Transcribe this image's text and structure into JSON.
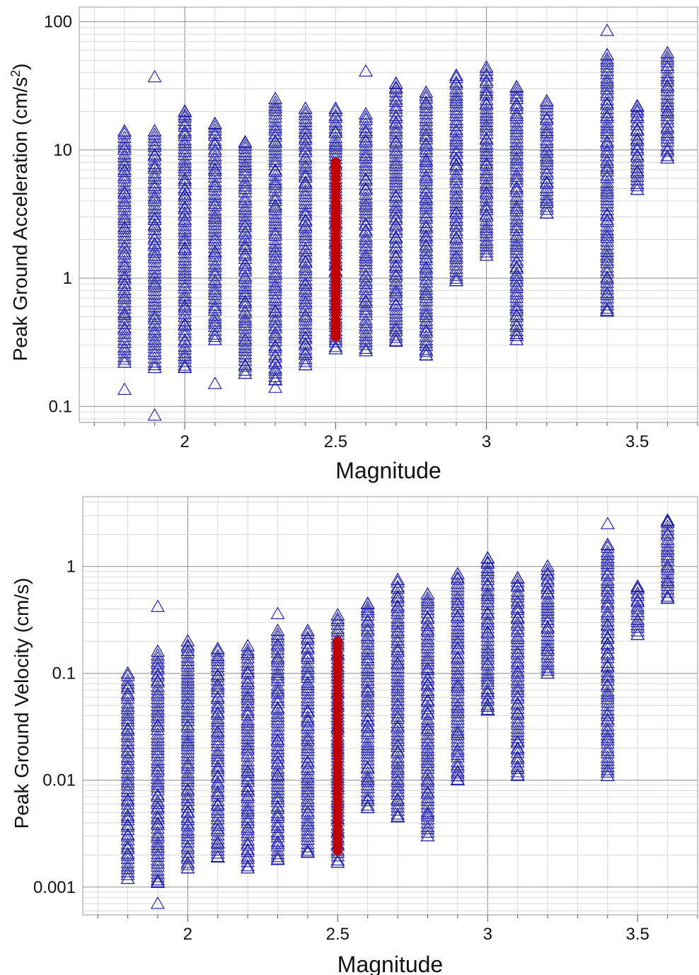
{
  "colors": {
    "triangle": "#1a1aa8",
    "highlight": "#c00000",
    "grid_major": "#8c8c8c",
    "grid_minor": "#d9d9d9"
  },
  "icons": {
    "marker_open": "triangle-outline",
    "marker_highlight": "filled-circle"
  },
  "chart_data": [
    {
      "type": "scatter",
      "xlabel": "Magnitude",
      "ylabel": "Peak Ground Acceleration (cm/s",
      "ylabel_sup": "2",
      "ylabel_tail": ")",
      "xticks": [
        "2",
        "2.5",
        "3",
        "3.5"
      ],
      "yticks": [
        "0.1",
        "1",
        "10",
        "100"
      ],
      "xlim": [
        1.65,
        3.7
      ],
      "ylim": [
        0.075,
        130
      ],
      "yscale": "log",
      "grid": true,
      "series": [
        {
          "marker": "open-triangle",
          "points": [
            {
              "x": 1.8,
              "y_min": 0.22,
              "y_max": 14,
              "outliers": [
                0.135
              ]
            },
            {
              "x": 1.9,
              "y_min": 0.2,
              "y_max": 14,
              "outliers": [
                0.085,
                37
              ]
            },
            {
              "x": 2.0,
              "y_min": 0.2,
              "y_max": 20,
              "outliers": []
            },
            {
              "x": 2.1,
              "y_min": 0.33,
              "y_max": 16,
              "outliers": [
                0.15
              ]
            },
            {
              "x": 2.2,
              "y_min": 0.18,
              "y_max": 11.5,
              "outliers": []
            },
            {
              "x": 2.3,
              "y_min": 0.16,
              "y_max": 25,
              "outliers": [
                0.14
              ]
            },
            {
              "x": 2.4,
              "y_min": 0.21,
              "y_max": 21,
              "outliers": []
            },
            {
              "x": 2.5,
              "y_min": 0.28,
              "y_max": 21,
              "outliers": []
            },
            {
              "x": 2.6,
              "y_min": 0.27,
              "y_max": 19,
              "outliers": [
                41
              ]
            },
            {
              "x": 2.7,
              "y_min": 0.32,
              "y_max": 33,
              "outliers": []
            },
            {
              "x": 2.8,
              "y_min": 0.25,
              "y_max": 28,
              "outliers": []
            },
            {
              "x": 2.9,
              "y_min": 0.95,
              "y_max": 38,
              "outliers": []
            },
            {
              "x": 3.0,
              "y_min": 1.5,
              "y_max": 44,
              "outliers": []
            },
            {
              "x": 3.1,
              "y_min": 0.33,
              "y_max": 31,
              "outliers": []
            },
            {
              "x": 3.2,
              "y_min": 3.2,
              "y_max": 24,
              "outliers": []
            },
            {
              "x": 3.4,
              "y_min": 0.55,
              "y_max": 55,
              "outliers": [
                85
              ]
            },
            {
              "x": 3.5,
              "y_min": 4.9,
              "y_max": 22,
              "outliers": []
            },
            {
              "x": 3.6,
              "y_min": 8.6,
              "y_max": 57,
              "outliers": []
            }
          ]
        },
        {
          "marker": "filled-circle",
          "points": [
            {
              "x": 2.5,
              "y_min": 0.35,
              "y_max": 8,
              "outliers": []
            }
          ]
        }
      ]
    },
    {
      "type": "scatter",
      "xlabel": "Magnitude",
      "ylabel": "Peak Ground Velocity (cm/s)",
      "xticks": [
        "2",
        "2.5",
        "3",
        "3.5"
      ],
      "yticks": [
        "0.001",
        "0.01",
        "0.1",
        "1"
      ],
      "xlim": [
        1.65,
        3.7
      ],
      "ylim": [
        0.00055,
        4.5
      ],
      "yscale": "log",
      "grid": true,
      "series": [
        {
          "marker": "open-triangle",
          "points": [
            {
              "x": 1.8,
              "y_min": 0.0012,
              "y_max": 0.1,
              "outliers": []
            },
            {
              "x": 1.9,
              "y_min": 0.0011,
              "y_max": 0.16,
              "outliers": [
                0.0007,
                0.42
              ]
            },
            {
              "x": 2.0,
              "y_min": 0.0015,
              "y_max": 0.2,
              "outliers": []
            },
            {
              "x": 2.1,
              "y_min": 0.0019,
              "y_max": 0.17,
              "outliers": []
            },
            {
              "x": 2.2,
              "y_min": 0.0015,
              "y_max": 0.18,
              "outliers": []
            },
            {
              "x": 2.3,
              "y_min": 0.0018,
              "y_max": 0.25,
              "outliers": [
                0.36
              ]
            },
            {
              "x": 2.4,
              "y_min": 0.0021,
              "y_max": 0.25,
              "outliers": []
            },
            {
              "x": 2.5,
              "y_min": 0.0017,
              "y_max": 0.35,
              "outliers": []
            },
            {
              "x": 2.6,
              "y_min": 0.0055,
              "y_max": 0.45,
              "outliers": []
            },
            {
              "x": 2.7,
              "y_min": 0.0045,
              "y_max": 0.75,
              "outliers": []
            },
            {
              "x": 2.8,
              "y_min": 0.003,
              "y_max": 0.55,
              "outliers": []
            },
            {
              "x": 2.9,
              "y_min": 0.01,
              "y_max": 0.85,
              "outliers": []
            },
            {
              "x": 3.0,
              "y_min": 0.045,
              "y_max": 1.2,
              "outliers": []
            },
            {
              "x": 3.1,
              "y_min": 0.011,
              "y_max": 0.78,
              "outliers": []
            },
            {
              "x": 3.2,
              "y_min": 0.1,
              "y_max": 1.0,
              "outliers": []
            },
            {
              "x": 3.4,
              "y_min": 0.011,
              "y_max": 1.6,
              "outliers": [
                2.5
              ]
            },
            {
              "x": 3.5,
              "y_min": 0.23,
              "y_max": 0.65,
              "outliers": []
            },
            {
              "x": 3.6,
              "y_min": 0.5,
              "y_max": 2.7,
              "outliers": []
            }
          ]
        },
        {
          "marker": "filled-circle",
          "points": [
            {
              "x": 2.5,
              "y_min": 0.0022,
              "y_max": 0.2,
              "outliers": []
            }
          ]
        }
      ]
    }
  ]
}
